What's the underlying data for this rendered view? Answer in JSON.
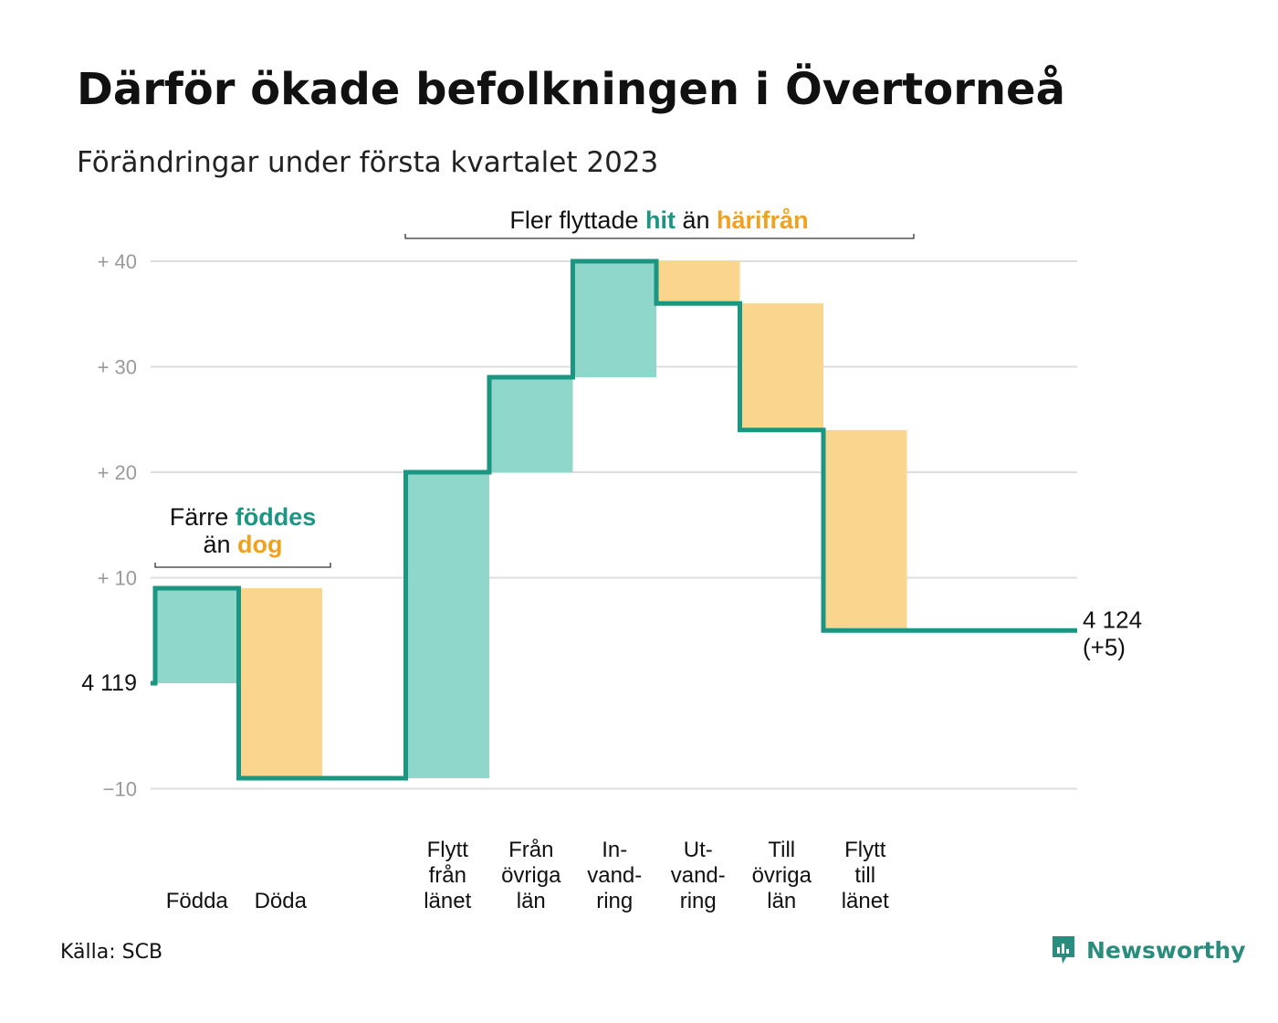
{
  "title": "Därför ökade befolkningen i Övertorneå",
  "subtitle": "Förändringar under första kvartalet 2023",
  "source": "Källa: SCB",
  "brand": "Newsworthy",
  "colors": {
    "teal": "#1a9682",
    "teal_fill": "#8fd6cb",
    "orange": "#f0a11f",
    "orange_fill": "#f9d58d",
    "grid": "#dddddd",
    "tick": "#9a9a9a"
  },
  "chart_data": {
    "type": "waterfall",
    "y_ticks": [
      {
        "value": 40,
        "label": "+ 40"
      },
      {
        "value": 30,
        "label": "+ 30"
      },
      {
        "value": 20,
        "label": "+ 20"
      },
      {
        "value": 10,
        "label": "+ 10"
      },
      {
        "value": -10,
        "label": "−10"
      }
    ],
    "ylim": [
      -10,
      40
    ],
    "start": {
      "value": 0,
      "label": "4 119"
    },
    "end": {
      "value": 5,
      "label_line1": "4 124",
      "label_line2": "(+5)"
    },
    "steps": [
      {
        "label_lines": [
          "Födda"
        ],
        "value": 9,
        "kind": "in"
      },
      {
        "label_lines": [
          "Döda"
        ],
        "value": -18,
        "kind": "out"
      },
      {
        "label_lines": [
          ""
        ],
        "value": 0,
        "kind": "gap"
      },
      {
        "label_lines": [
          "Flytt",
          "från",
          "länet"
        ],
        "value": 29,
        "kind": "in"
      },
      {
        "label_lines": [
          "Från",
          "övriga",
          "län"
        ],
        "value": 9,
        "kind": "in"
      },
      {
        "label_lines": [
          "In-",
          "vand-",
          "ring"
        ],
        "value": 11,
        "kind": "in"
      },
      {
        "label_lines": [
          "Ut-",
          "vand-",
          "ring"
        ],
        "value": -4,
        "kind": "out"
      },
      {
        "label_lines": [
          "Till",
          "övriga",
          "län"
        ],
        "value": -12,
        "kind": "out"
      },
      {
        "label_lines": [
          "Flytt",
          "till",
          "länet"
        ],
        "value": -19,
        "kind": "out"
      }
    ],
    "annotations": [
      {
        "parts": [
          {
            "text": "Färre ",
            "style": "plain"
          },
          {
            "text": "föddes",
            "style": "teal"
          }
        ],
        "parts2": [
          {
            "text": "än ",
            "style": "plain"
          },
          {
            "text": "dog",
            "style": "orange"
          }
        ]
      },
      {
        "parts": [
          {
            "text": "Fler flyttade ",
            "style": "plain"
          },
          {
            "text": "hit",
            "style": "teal"
          },
          {
            "text": " än ",
            "style": "plain"
          },
          {
            "text": "härifrån",
            "style": "orange"
          }
        ]
      }
    ]
  }
}
